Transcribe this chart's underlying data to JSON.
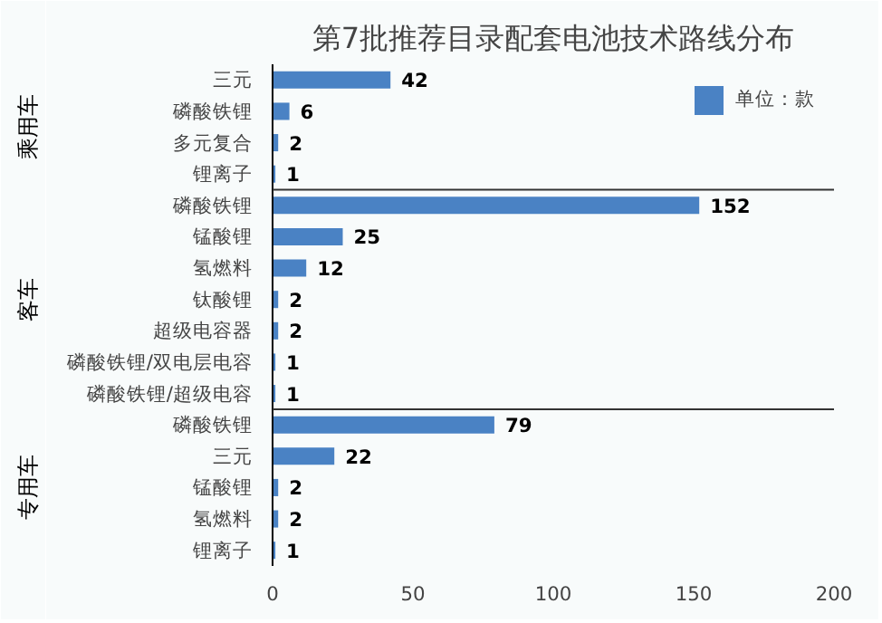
{
  "chart_data": {
    "type": "bar",
    "orientation": "horizontal",
    "title": "第7批推荐目录配套电池技术路线分布",
    "categories": [
      "三元",
      "磷酸铁锂",
      "多元复合",
      "锂离子",
      "磷酸铁锂",
      "锰酸锂",
      "氢燃料",
      "钛酸锂",
      "超级电容器",
      "磷酸铁锂/双电层电容",
      "磷酸铁锂/超级电容",
      "磷酸铁锂",
      "三元",
      "锰酸锂",
      "氢燃料",
      "锂离子"
    ],
    "series": [
      {
        "name": "单位：款",
        "color": "#4a82c4",
        "values": [
          42,
          6,
          2,
          1,
          152,
          25,
          12,
          2,
          2,
          1,
          1,
          79,
          22,
          2,
          2,
          1
        ]
      }
    ],
    "xlim": [
      0,
      200
    ],
    "xticks": [
      0,
      50,
      100,
      150,
      200
    ],
    "data_labels": true,
    "legend": "top right",
    "grid": false,
    "annotations": [
      "乘用车",
      "客车",
      "专用车"
    ]
  }
}
